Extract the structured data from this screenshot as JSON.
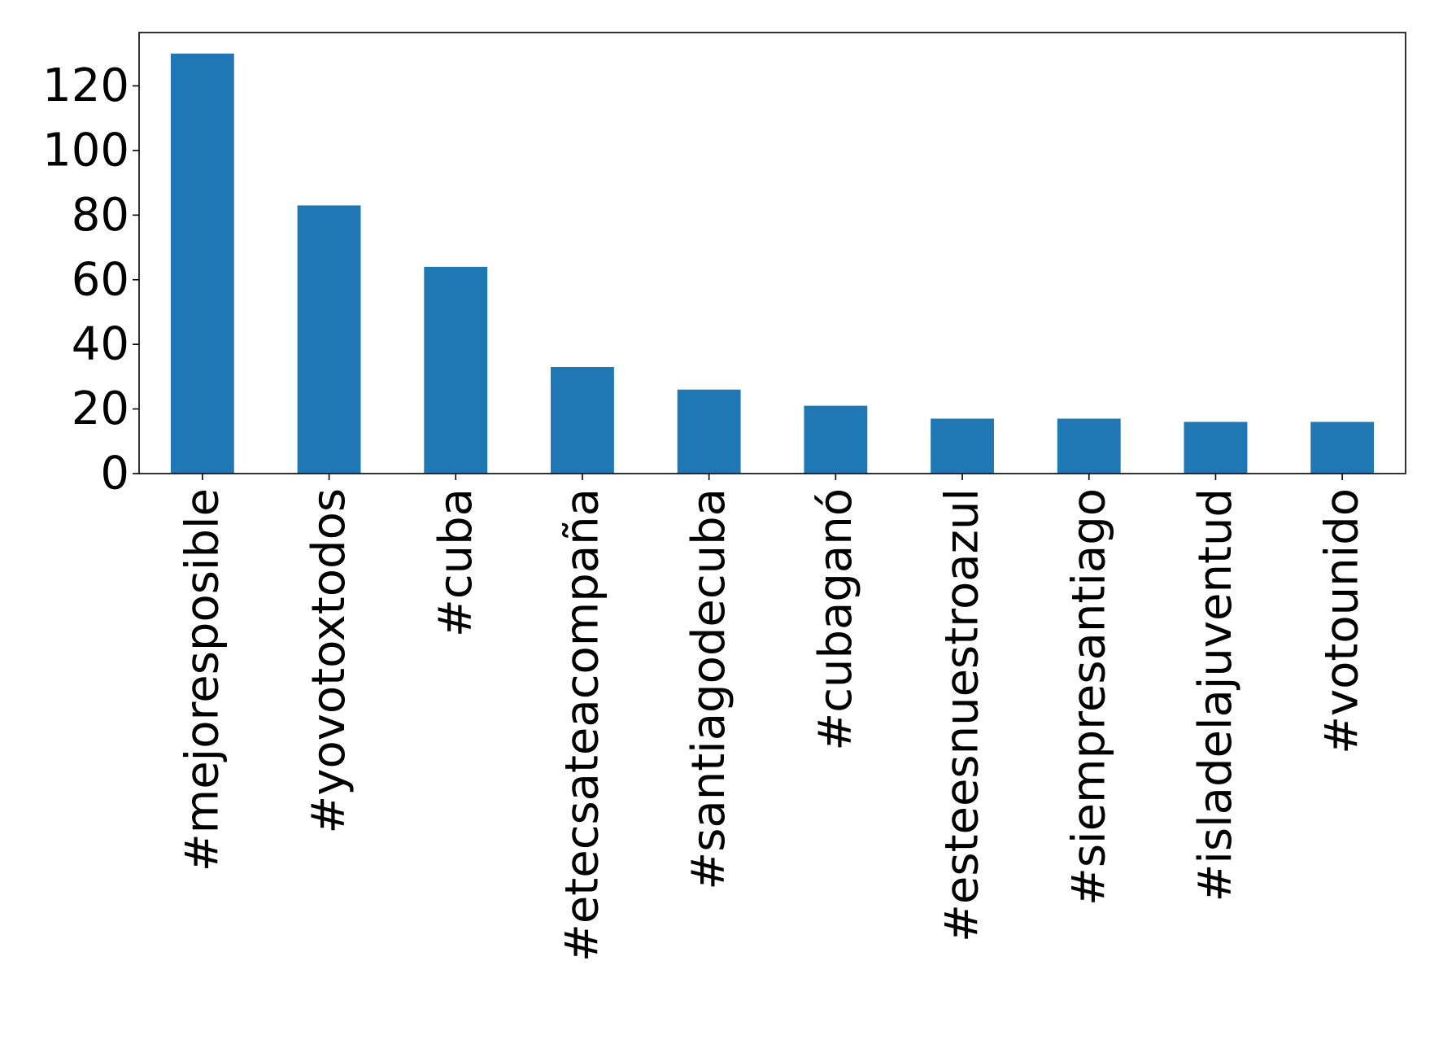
{
  "chart_data": {
    "type": "bar",
    "title": "",
    "xlabel": "",
    "ylabel": "",
    "categories": [
      "#mejoresposible",
      "#yovotoxtodos",
      "#cuba",
      "#etecsateacompaña",
      "#santiagodecuba",
      "#cubaganó",
      "#esteesnuestroazul",
      "#siempresantiago",
      "#isladelajuventud",
      "#votounido"
    ],
    "values": [
      130,
      83,
      64,
      33,
      26,
      21,
      17,
      17,
      16,
      16
    ],
    "ylim": [
      0,
      136.5
    ],
    "yticks": [
      0,
      20,
      40,
      60,
      80,
      100,
      120
    ],
    "grid": false,
    "legend": "none",
    "bar_color": "#1f77b4"
  }
}
